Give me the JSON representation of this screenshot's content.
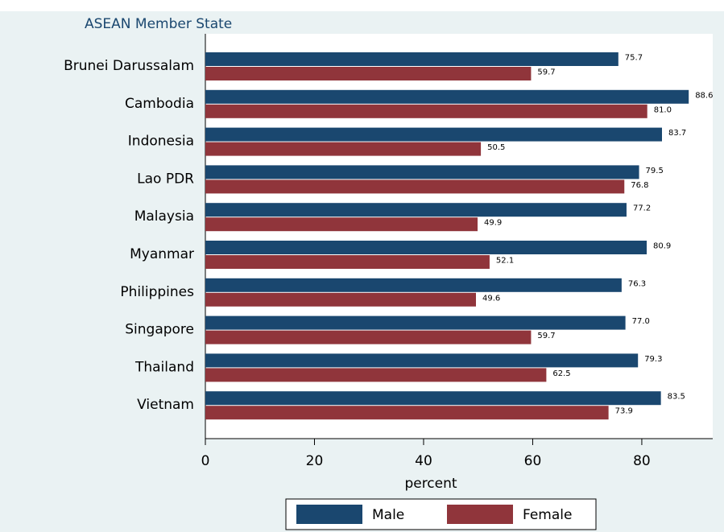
{
  "chart_data": {
    "type": "barh",
    "axis_title": "ASEAN Member State",
    "xlabel": "percent",
    "categories": [
      "Brunei Darussalam",
      "Cambodia",
      "Indonesia",
      "Lao PDR",
      "Malaysia",
      "Myanmar",
      "Philippines",
      "Singapore",
      "Thailand",
      "Vietnam"
    ],
    "series": [
      {
        "name": "Male",
        "color": "#1a476f",
        "values": [
          75.7,
          88.6,
          83.7,
          79.5,
          77.2,
          80.9,
          76.3,
          77.0,
          79.3,
          83.5
        ],
        "value_labels": [
          "75.7",
          "88.6",
          "83.7",
          "79.5",
          "77.2",
          "80.9",
          "76.3",
          "77.0",
          "79.3",
          "83.5"
        ]
      },
      {
        "name": "Female",
        "color": "#90353b",
        "values": [
          59.7,
          81.0,
          50.5,
          76.8,
          49.9,
          52.1,
          49.6,
          59.7,
          62.5,
          73.9
        ],
        "value_labels": [
          "59.7",
          "81.0",
          "50.5",
          "76.8",
          "49.9",
          "52.1",
          "49.6",
          "59.7",
          "62.5",
          "73.9"
        ]
      }
    ],
    "xlim": [
      0,
      93
    ],
    "xticks": [
      0,
      20,
      40,
      60,
      80
    ],
    "legend": "bottom"
  }
}
